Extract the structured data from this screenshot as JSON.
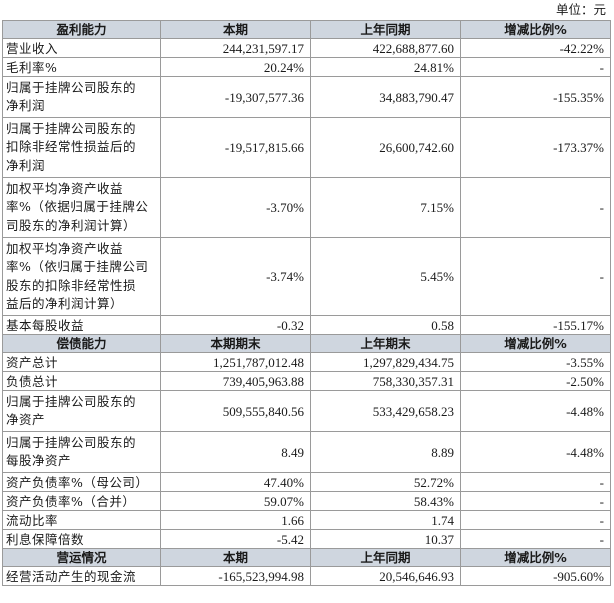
{
  "unit_label": "单位：元",
  "sections": [
    {
      "header": [
        "盈利能力",
        "本期",
        "上年同期",
        "增减比例%"
      ],
      "rows": [
        {
          "label": [
            "营业收入"
          ],
          "current": "244,231,597.17",
          "previous": "422,688,877.60",
          "change": "-42.22%"
        },
        {
          "label": [
            "毛利率%"
          ],
          "current": "20.24%",
          "previous": "24.81%",
          "change": "-"
        },
        {
          "label": [
            "归属于挂牌公司股东的",
            "净利润"
          ],
          "current": "-19,307,577.36",
          "previous": "34,883,790.47",
          "change": "-155.35%"
        },
        {
          "label": [
            "归属于挂牌公司股东的",
            "扣除非经常性损益后的",
            "净利润"
          ],
          "current": "-19,517,815.66",
          "previous": "26,600,742.60",
          "change": "-173.37%"
        },
        {
          "label": [
            "加权平均净资产收益",
            "率%（依据归属于挂牌公",
            "司股东的净利润计算）"
          ],
          "current": "-3.70%",
          "previous": "7.15%",
          "change": "-"
        },
        {
          "label": [
            "加权平均净资产收益",
            "率%（依归属于挂牌公司",
            "股东的扣除非经常性损",
            "益后的净利润计算）"
          ],
          "current": "-3.74%",
          "previous": "5.45%",
          "change": "-"
        },
        {
          "label": [
            "基本每股收益"
          ],
          "current": "-0.32",
          "previous": "0.58",
          "change": "-155.17%"
        }
      ]
    },
    {
      "header": [
        "偿债能力",
        "本期期末",
        "上年期末",
        "增减比例%"
      ],
      "rows": [
        {
          "label": [
            "资产总计"
          ],
          "current": "1,251,787,012.48",
          "previous": "1,297,829,434.75",
          "change": "-3.55%"
        },
        {
          "label": [
            "负债总计"
          ],
          "current": "739,405,963.88",
          "previous": "758,330,357.31",
          "change": "-2.50%"
        },
        {
          "label": [
            "归属于挂牌公司股东的",
            "净资产"
          ],
          "current": "509,555,840.56",
          "previous": "533,429,658.23",
          "change": "-4.48%"
        },
        {
          "label": [
            "归属于挂牌公司股东的",
            "每股净资产"
          ],
          "current": "8.49",
          "previous": "8.89",
          "change": "-4.48%"
        },
        {
          "label": [
            "资产负债率%（母公司）"
          ],
          "current": "47.40%",
          "previous": "52.72%",
          "change": "-"
        },
        {
          "label": [
            "资产负债率%（合并）"
          ],
          "current": "59.07%",
          "previous": "58.43%",
          "change": "-"
        },
        {
          "label": [
            "流动比率"
          ],
          "current": "1.66",
          "previous": "1.74",
          "change": "-"
        },
        {
          "label": [
            "利息保障倍数"
          ],
          "current": "-5.42",
          "previous": "10.37",
          "change": "-"
        }
      ]
    },
    {
      "header": [
        "营运情况",
        "本期",
        "上年同期",
        "增减比例%"
      ],
      "rows": [
        {
          "label": [
            "经营活动产生的现金流"
          ],
          "current": "-165,523,994.98",
          "previous": "20,546,646.93",
          "change": "-905.60%"
        }
      ]
    }
  ]
}
